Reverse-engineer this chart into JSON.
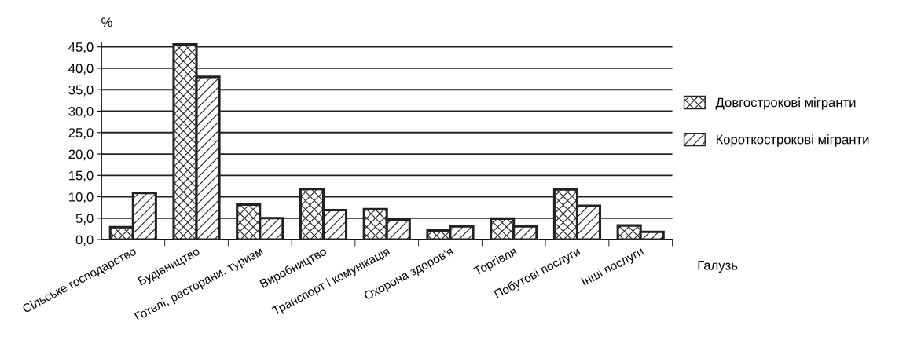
{
  "chart_data": {
    "type": "bar",
    "ylabel": "%",
    "xlabel": "Галузь",
    "categories": [
      "Сільське господарство",
      "Будівництво",
      "Готелі, ресторани, туризм",
      "Виробництво",
      "Транспорт і комунікація",
      "Охорона здоров'я",
      "Торгівля",
      "Побутові послуги",
      "Інші послуги"
    ],
    "series": [
      {
        "name": "Довгострокові мігранти",
        "color": "#222222",
        "values": [
          2.9,
          45.6,
          8.2,
          11.8,
          7.1,
          2.1,
          4.9,
          11.7,
          3.3
        ]
      },
      {
        "name": "Короткострокові мігранти",
        "color": "#222222",
        "values": [
          10.9,
          38.0,
          5.0,
          6.9,
          4.7,
          3.1,
          3.1,
          7.9,
          1.8
        ]
      }
    ],
    "ylim": [
      0,
      46
    ],
    "yticks": [
      {
        "value": 0,
        "label": "0,0"
      },
      {
        "value": 5,
        "label": "5,0"
      },
      {
        "value": 10,
        "label": "10,0"
      },
      {
        "value": 15,
        "label": "15,0"
      },
      {
        "value": 20,
        "label": "20,0"
      },
      {
        "value": 25,
        "label": "25,0"
      },
      {
        "value": 30,
        "label": "30,0"
      },
      {
        "value": 35,
        "label": "35,0"
      },
      {
        "value": 40,
        "label": "40,0"
      },
      {
        "value": 45,
        "label": "45,0"
      }
    ],
    "grid": "y",
    "legend": "right"
  }
}
